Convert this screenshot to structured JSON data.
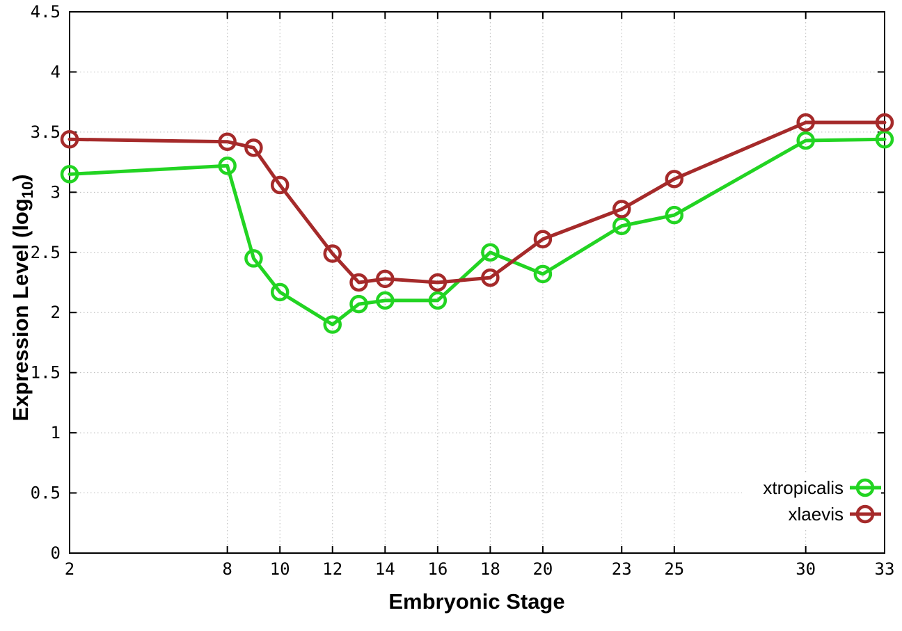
{
  "figure": {
    "background": "#ffffff",
    "axis_color": "#000000",
    "grid_color": "#b8b8b8"
  },
  "chart_data": {
    "type": "line",
    "title": "",
    "xlabel": "Embryonic Stage",
    "ylabel": {
      "pre": "Expression Level (log",
      "sub": "10",
      "post": ")"
    },
    "xlim": [
      2,
      33
    ],
    "ylim": [
      0,
      4.5
    ],
    "x_ticks": [
      2,
      8,
      10,
      12,
      14,
      16,
      18,
      20,
      23,
      25,
      30,
      33
    ],
    "y_ticks": [
      0,
      0.5,
      1,
      1.5,
      2,
      2.5,
      3,
      3.5,
      4,
      4.5
    ],
    "grid": true,
    "legend_position": "bottom-right",
    "series": [
      {
        "name": "xtropicalis",
        "color": "#22d422",
        "x": [
          2,
          8,
          9,
          10,
          12,
          13,
          14,
          16,
          18,
          20,
          23,
          25,
          30,
          33
        ],
        "y": [
          3.15,
          3.22,
          2.45,
          2.17,
          1.9,
          2.07,
          2.1,
          2.1,
          2.5,
          2.32,
          2.72,
          2.81,
          3.43,
          3.44
        ]
      },
      {
        "name": "xlaevis",
        "color": "#a52a2a",
        "x": [
          2,
          8,
          9,
          10,
          12,
          13,
          14,
          16,
          18,
          20,
          23,
          25,
          30,
          33
        ],
        "y": [
          3.44,
          3.42,
          3.37,
          3.06,
          2.49,
          2.25,
          2.28,
          2.25,
          2.29,
          2.61,
          2.86,
          3.11,
          3.58,
          3.58
        ]
      }
    ]
  }
}
